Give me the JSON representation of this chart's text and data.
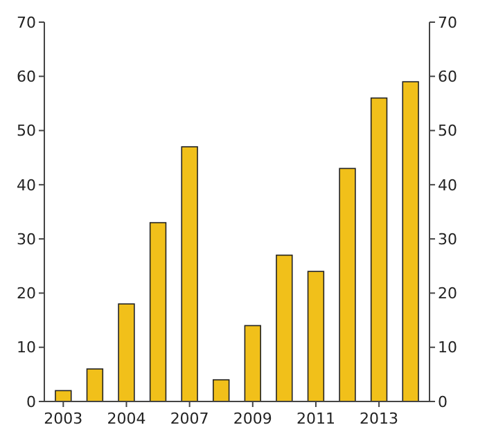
{
  "chart_data": {
    "type": "bar",
    "categories": [
      "2003",
      null,
      "2004",
      null,
      "2007",
      null,
      "2009",
      null,
      "2011",
      null,
      "2013",
      null
    ],
    "values": [
      2,
      6,
      18,
      33,
      47,
      4,
      14,
      27,
      24,
      43,
      56,
      59
    ],
    "color": "#f1c01a",
    "ylim": [
      0,
      70
    ],
    "yticks": [
      0,
      10,
      20,
      30,
      40,
      50,
      60,
      70
    ],
    "y2lim": [
      0,
      70
    ],
    "y2ticks": [
      0,
      10,
      20,
      30,
      40,
      50,
      60,
      70
    ],
    "grid": false
  }
}
